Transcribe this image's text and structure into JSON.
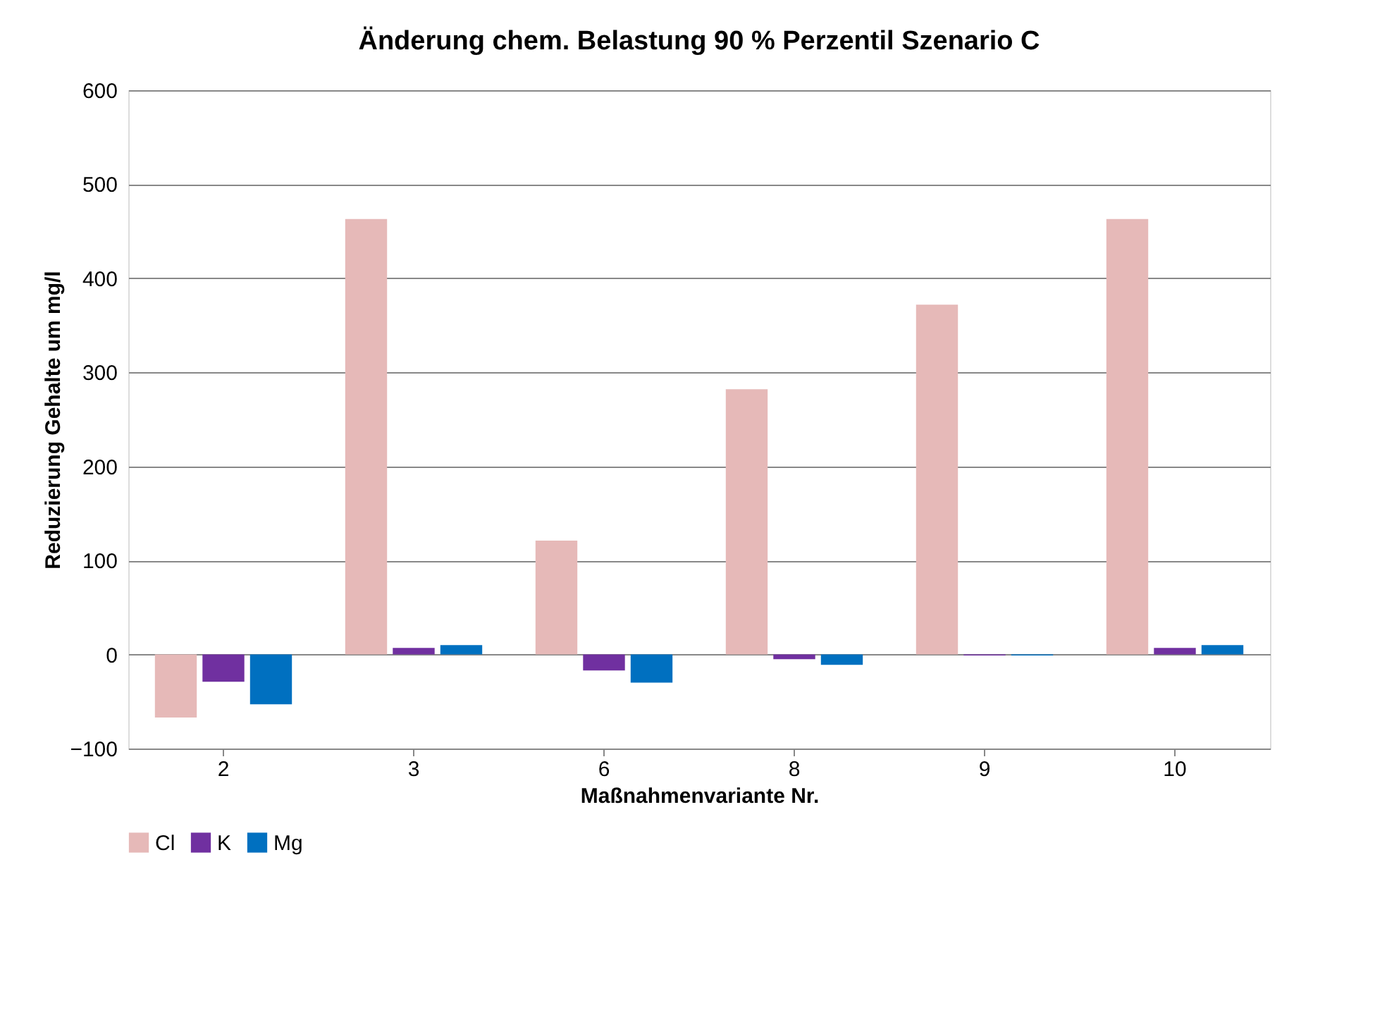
{
  "chart_data": {
    "type": "bar",
    "title": "Änderung chem. Belastung 90 % Perzentil Szenario C",
    "xlabel": "Maßnahmenvariante Nr.",
    "ylabel": "Reduzierung Gehalte um  mg/l",
    "categories": [
      "2",
      "3",
      "6",
      "8",
      "9",
      "10"
    ],
    "series": [
      {
        "name": "Cl",
        "color": "#e6b9b8",
        "values": [
          -67,
          463,
          121,
          282,
          372,
          463
        ]
      },
      {
        "name": "K",
        "color": "#7030a0",
        "values": [
          -29,
          7,
          -17,
          -5,
          -1,
          7
        ]
      },
      {
        "name": "Mg",
        "color": "#0070c0",
        "values": [
          -53,
          10,
          -30,
          -11,
          -1,
          10
        ]
      }
    ],
    "ylim": [
      -100,
      600
    ],
    "yticks": [
      -100,
      0,
      100,
      200,
      300,
      400,
      500,
      600
    ],
    "grid": "y",
    "legend": "bottom"
  }
}
